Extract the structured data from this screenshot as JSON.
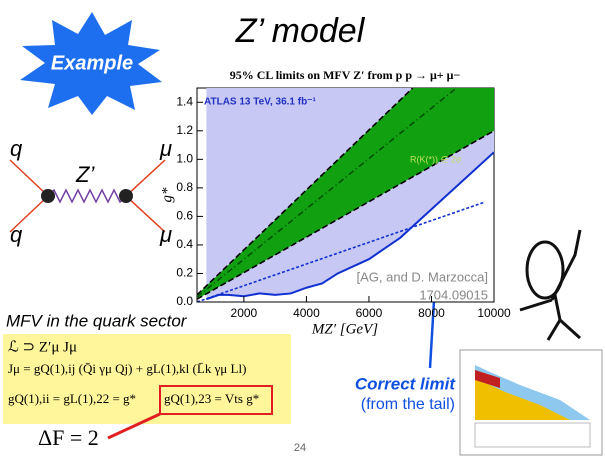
{
  "badge": "Example",
  "title": "Z’ model",
  "diagram": {
    "quark_in": "q",
    "quark_out": "q",
    "boson": "Z’",
    "muon_top": "μ",
    "muon_bottom": "μ"
  },
  "section": "MFV in the quark sector",
  "formulas": [
    "ℒ ⊃ Z′μ Jμ",
    "Jμ = gQ(1),ij (Q̄i γμ Qj) + gL(1),kl (L̄k γμ Ll)",
    "gQ(1),ii = gL(1),22 = g*",
    "gQ(1),23 = Vts g*"
  ],
  "delta_f": "ΔF = 2",
  "note": [
    "Correct limit",
    "(from the tail)"
  ],
  "page_number": "24",
  "chart_data": {
    "type": "line",
    "title": "95% CL limits on MFV Z′ from p p → μ+ μ−",
    "x_label": "MZ′ [GeV]",
    "y_label": "g*",
    "annotations": [
      "ATLAS 13 TeV, 36.1 fb⁻¹",
      "R(K(*)) ∈ 2σ",
      "[AG, and D. Marzocca]",
      "1704.09015"
    ],
    "xlim": [
      500,
      10000
    ],
    "ylim": [
      0,
      1.5
    ],
    "xticks": [
      2000,
      4000,
      6000,
      8000,
      10000
    ],
    "yticks": [
      {
        "value": 0,
        "label": "0.0"
      },
      {
        "value": 0.2,
        "label": "0.2"
      },
      {
        "value": 0.4,
        "label": "0.4"
      },
      {
        "value": 0.6,
        "label": "0.6"
      },
      {
        "value": 0.8,
        "label": "0.8"
      },
      {
        "value": 1,
        "label": "1.0"
      },
      {
        "value": 1.2,
        "label": "1.2"
      },
      {
        "value": 1.4,
        "label": "1.4"
      }
    ],
    "series": [
      {
        "color": "#1030d0",
        "style": "solid",
        "fill_above": "#c8c8f4",
        "x": [
          800,
          1200,
          1500,
          2000,
          2500,
          3000,
          3500,
          4000,
          4500,
          5000,
          5500,
          6000,
          7000,
          8000,
          9000,
          10000
        ],
        "values": [
          0.02,
          0.05,
          0.05,
          0.04,
          0.06,
          0.05,
          0.06,
          0.1,
          0.13,
          0.2,
          0.25,
          0.3,
          0.45,
          0.65,
          0.85,
          1.05
        ]
      },
      {
        "color": "#000000",
        "style": "dashed",
        "x": [
          500,
          7400
        ],
        "values": [
          0.05,
          1.5
        ]
      },
      {
        "color": "#000000",
        "style": "dashed",
        "band_fill": "#10a010",
        "x": [
          500,
          10000
        ],
        "values": [
          0.02,
          1.2
        ]
      },
      {
        "color": "#005000",
        "style": "dashdot",
        "x": [
          500,
          8800
        ],
        "values": [
          0.035,
          1.5
        ]
      },
      {
        "color": "#1030d0",
        "style": "dotted",
        "x": [
          500,
          9700
        ],
        "values": [
          0,
          0.7
        ]
      }
    ]
  }
}
